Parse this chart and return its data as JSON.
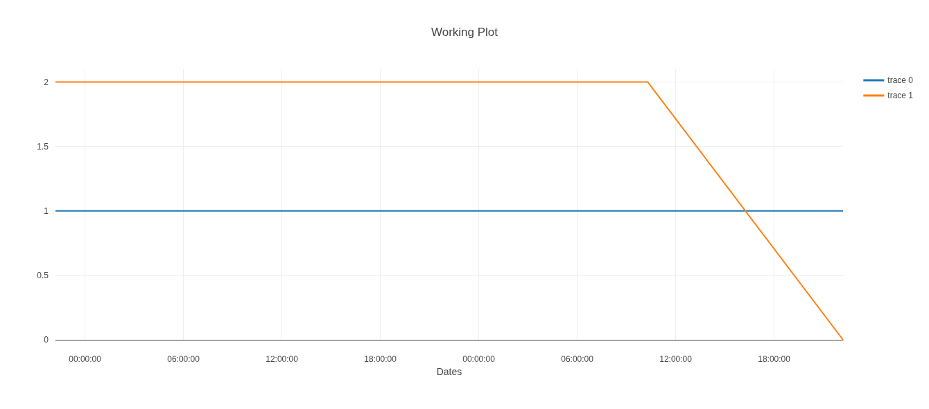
{
  "chart_data": {
    "type": "line",
    "title": "Working Plot",
    "xlabel": "Dates",
    "x": [
      "--01-01T22:12",
      "--01-03T10:18",
      "--01-03T22:12"
    ],
    "series": [
      {
        "name": "trace 0",
        "color": "#1f77b4",
        "values": [
          1,
          1,
          1
        ]
      },
      {
        "name": "trace 1",
        "color": "#ff7f0e",
        "values": [
          2,
          2,
          0
        ]
      }
    ],
    "xlim": [
      "--01-01T22:12",
      "--01-03T22:12"
    ],
    "xticks": [
      {
        "value": "--01-02T00:00",
        "label": "00:00:00"
      },
      {
        "value": "--01-02T06:00",
        "label": "06:00:00"
      },
      {
        "value": "--01-02T12:00",
        "label": "12:00:00"
      },
      {
        "value": "--01-02T18:00",
        "label": "18:00:00"
      },
      {
        "value": "--01-03T00:00",
        "label": "00:00:00"
      },
      {
        "value": "--01-03T06:00",
        "label": "06:00:00"
      },
      {
        "value": "--01-03T12:00",
        "label": "12:00:00"
      },
      {
        "value": "--01-03T18:00",
        "label": "18:00:00"
      }
    ],
    "ylim": [
      0,
      2.1
    ],
    "yticks": [
      0,
      0.5,
      1,
      1.5,
      2
    ],
    "grid": true,
    "legend": "top right"
  }
}
